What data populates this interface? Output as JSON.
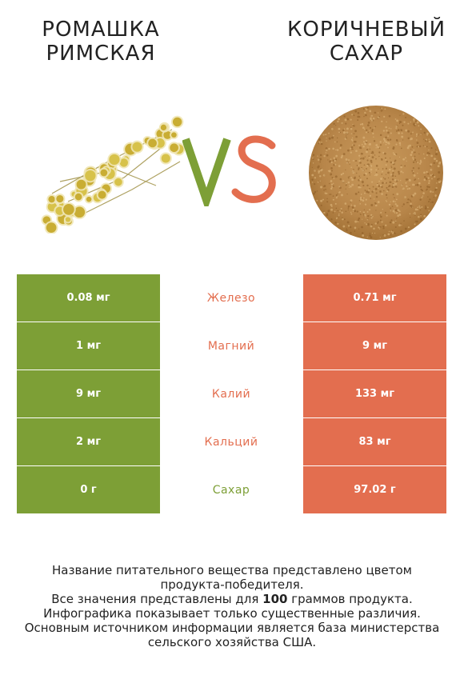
{
  "left_product": {
    "title": "РОМАШКА\nРИМСКАЯ",
    "image": "chamomile-flowers"
  },
  "right_product": {
    "title": "КОРИЧНЕВЫЙ\nСАХАР",
    "image": "brown-sugar-pile"
  },
  "vs": {
    "v": "V",
    "s": "S"
  },
  "colors": {
    "left": "#7d9f36",
    "right": "#e36e4f",
    "vs_v": "#7d9f36",
    "vs_s": "#e36e4f"
  },
  "rows": [
    {
      "left": "0.08 мг",
      "nutrient": "Железо",
      "right": "0.71 мг",
      "winner": "right"
    },
    {
      "left": "1 мг",
      "nutrient": "Магний",
      "right": "9 мг",
      "winner": "right"
    },
    {
      "left": "9 мг",
      "nutrient": "Калий",
      "right": "133 мг",
      "winner": "right"
    },
    {
      "left": "2 мг",
      "nutrient": "Кальций",
      "right": "83 мг",
      "winner": "right"
    },
    {
      "left": "0 г",
      "nutrient": "Сахар",
      "right": "97.02 г",
      "winner": "left"
    }
  ],
  "footer": {
    "line1": "Название питательного вещества представлено цветом",
    "line2": "продукта-победителя.",
    "line3_pre": "Все значения представлены для ",
    "line3_bold": "100",
    "line3_post": " граммов продукта.",
    "line4": "Инфографика показывает только существенные различия.",
    "line5": "Основным источником информации является база министерства",
    "line6": "сельского хозяйства США."
  }
}
